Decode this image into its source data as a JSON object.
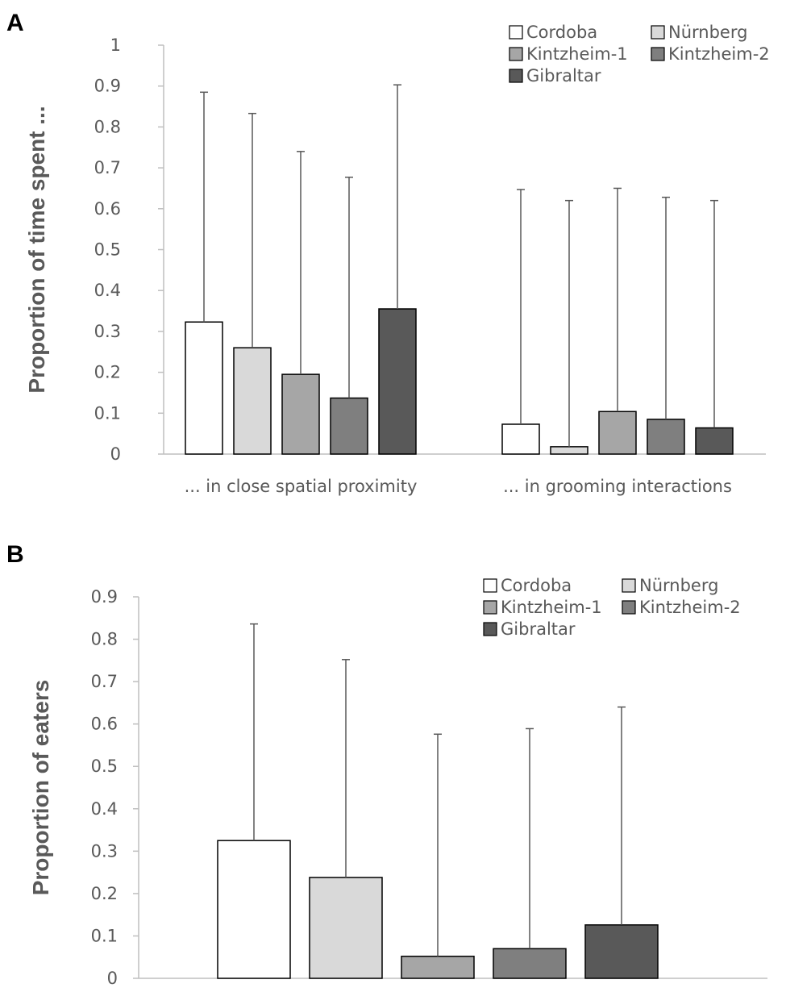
{
  "series_colors": {
    "Cordoba": "#ffffff",
    "Nürnberg": "#d9d9d9",
    "Kintzheim-1": "#a6a6a6",
    "Kintzheim-2": "#7f7f7f",
    "Gibraltar": "#595959"
  },
  "chart_data": [
    {
      "panel_label": "A",
      "type": "bar",
      "title": "",
      "xlabel": "",
      "ylabel": "Proportion of time spent ...",
      "ylim": [
        0,
        1
      ],
      "yticks": [
        0,
        0.1,
        0.2,
        0.3,
        0.4,
        0.5,
        0.6,
        0.7,
        0.8,
        0.9,
        1
      ],
      "ytick_labels": [
        "0",
        "0.1",
        "0.2",
        "0.3",
        "0.4",
        "0.5",
        "0.6",
        "0.7",
        "0.8",
        "0.9",
        "1"
      ],
      "grid": false,
      "legend_position": "top-right",
      "legend": [
        "Cordoba",
        "Nürnberg",
        "Kintzheim-1",
        "Kintzheim-2",
        "Gibraltar"
      ],
      "categories": [
        "... in close spatial proximity",
        "... in grooming interactions"
      ],
      "series": [
        {
          "name": "Cordoba",
          "values": [
            0.323,
            0.073
          ],
          "error_upper": [
            0.885,
            0.647
          ]
        },
        {
          "name": "Nürnberg",
          "values": [
            0.26,
            0.018
          ],
          "error_upper": [
            0.833,
            0.62
          ]
        },
        {
          "name": "Kintzheim-1",
          "values": [
            0.195,
            0.104
          ],
          "error_upper": [
            0.74,
            0.65
          ]
        },
        {
          "name": "Kintzheim-2",
          "values": [
            0.137,
            0.085
          ],
          "error_upper": [
            0.677,
            0.628
          ]
        },
        {
          "name": "Gibraltar",
          "values": [
            0.355,
            0.064
          ],
          "error_upper": [
            0.903,
            0.62
          ]
        }
      ]
    },
    {
      "panel_label": "B",
      "type": "bar",
      "title": "",
      "xlabel": "",
      "ylabel": "Proportion of eaters",
      "ylim": [
        0,
        0.9
      ],
      "yticks": [
        0,
        0.1,
        0.2,
        0.3,
        0.4,
        0.5,
        0.6,
        0.7,
        0.8,
        0.9
      ],
      "ytick_labels": [
        "0",
        "0.1",
        "0.2",
        "0.3",
        "0.4",
        "0.5",
        "0.6",
        "0.7",
        "0.8",
        "0.9"
      ],
      "grid": false,
      "legend_position": "top-right",
      "legend": [
        "Cordoba",
        "Nürnberg",
        "Kintzheim-1",
        "Kintzheim-2",
        "Gibraltar"
      ],
      "categories": [
        ""
      ],
      "series": [
        {
          "name": "Cordoba",
          "values": [
            0.325
          ],
          "error_upper": [
            0.836
          ]
        },
        {
          "name": "Nürnberg",
          "values": [
            0.238
          ],
          "error_upper": [
            0.752
          ]
        },
        {
          "name": "Kintzheim-1",
          "values": [
            0.052
          ],
          "error_upper": [
            0.576
          ]
        },
        {
          "name": "Kintzheim-2",
          "values": [
            0.07
          ],
          "error_upper": [
            0.589
          ]
        },
        {
          "name": "Gibraltar",
          "values": [
            0.126
          ],
          "error_upper": [
            0.64
          ]
        }
      ]
    }
  ]
}
